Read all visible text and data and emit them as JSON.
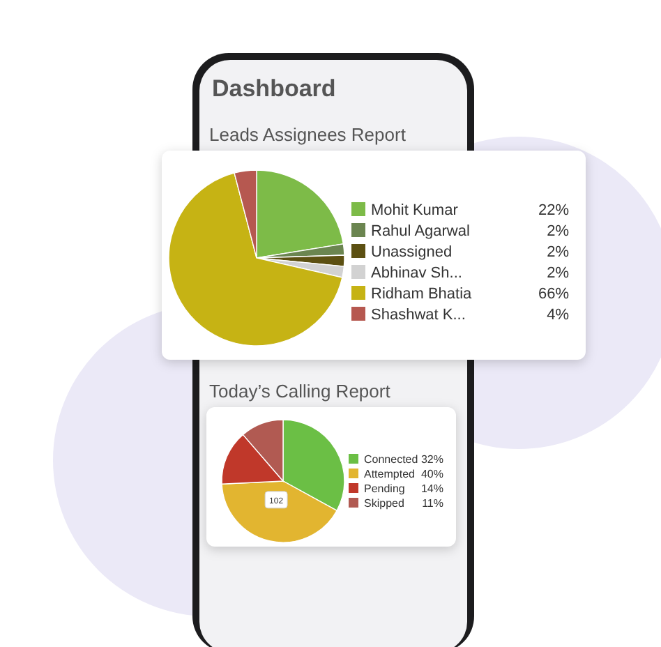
{
  "chart_data": [
    {
      "type": "other",
      "title": "Dashboard"
    },
    {
      "type": "pie",
      "title": "Leads Assignees Report",
      "categories": [
        "Mohit Kumar",
        "Rahul Agarwal",
        "Unassigned",
        "Abhinav Sh...",
        "Ridham Bhatia",
        "Shashwat K..."
      ],
      "values": [
        22,
        2,
        2,
        2,
        66,
        4
      ],
      "value_labels": [
        "22%",
        "2%",
        "2%",
        "2%",
        "66%",
        "4%"
      ],
      "colors": [
        "#7dbb48",
        "#6b8550",
        "#5c5012",
        "#d2d2d2",
        "#c6b314",
        "#b65850"
      ],
      "legend": "right"
    },
    {
      "type": "pie",
      "title": "Today’s Calling Report",
      "categories": [
        "Connected",
        "Attempted",
        "Pending",
        "Skipped"
      ],
      "values": [
        32,
        40,
        14,
        11
      ],
      "value_labels": [
        "32%",
        "40%",
        "14%",
        "11%"
      ],
      "colors": [
        "#6bbf45",
        "#e2b530",
        "#c0382a",
        "#b15a52"
      ],
      "legend": "right",
      "annotations": [
        "102"
      ]
    }
  ]
}
